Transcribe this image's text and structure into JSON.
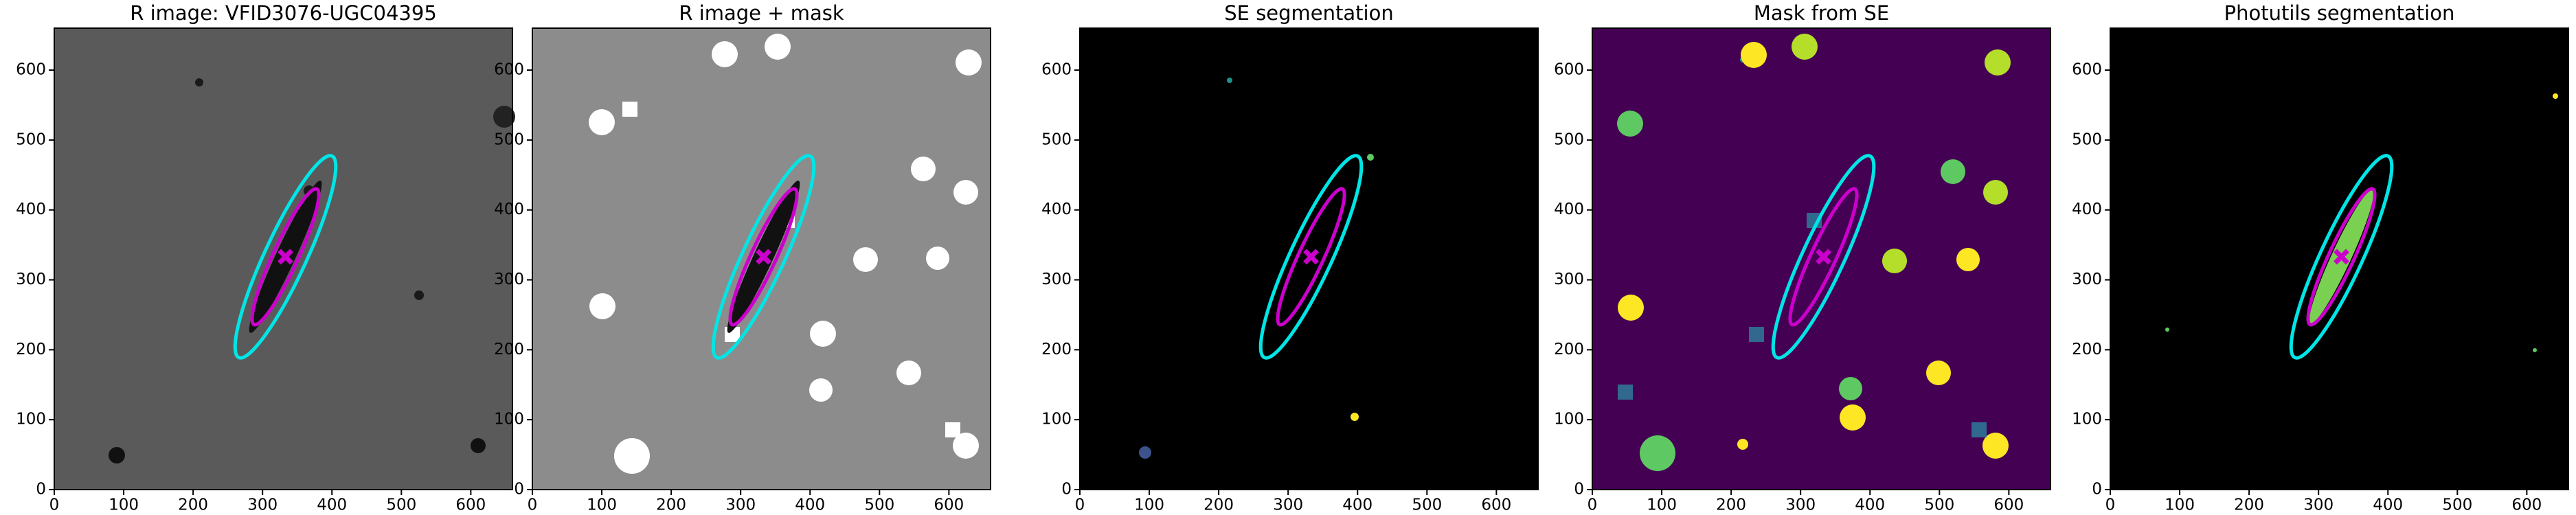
{
  "chart_data": [
    {
      "type": "image",
      "title": "R image: VFID3076-UGC04395",
      "background": "#5a5a5a",
      "xlim": [
        0,
        660
      ],
      "ylim": [
        0,
        660
      ],
      "xticks": [
        0,
        100,
        200,
        300,
        400,
        500,
        600
      ],
      "yticks": [
        0,
        100,
        200,
        300,
        400,
        500,
        600
      ],
      "ellipses": [
        {
          "color": "#111111",
          "filled": true,
          "cx": 333,
          "cy": 333,
          "a": 120,
          "b": 14,
          "angle": 65
        },
        {
          "color": "#00e5e5",
          "filled": false,
          "cx": 333,
          "cy": 333,
          "a": 159,
          "b": 30,
          "angle": 65
        },
        {
          "color": "#cc00cc",
          "filled": false,
          "cx": 333,
          "cy": 333,
          "a": 107,
          "b": 18,
          "angle": 65
        }
      ],
      "marker": {
        "x": 333,
        "y": 333,
        "color": "#cc00cc"
      }
    },
    {
      "type": "image",
      "title": "R image + mask",
      "background": "#8c8c8c",
      "xlim": [
        0,
        660
      ],
      "ylim": [
        0,
        660
      ],
      "xticks": [
        0,
        100,
        200,
        300,
        400,
        500,
        600
      ],
      "yticks": [
        0,
        100,
        200,
        300,
        400,
        500,
        600
      ],
      "ellipses": [
        {
          "color": "#111111",
          "filled": true,
          "cx": 333,
          "cy": 333,
          "a": 120,
          "b": 14,
          "angle": 65
        },
        {
          "color": "#00e5e5",
          "filled": false,
          "cx": 333,
          "cy": 333,
          "a": 159,
          "b": 30,
          "angle": 65
        },
        {
          "color": "#cc00cc",
          "filled": false,
          "cx": 333,
          "cy": 333,
          "a": 107,
          "b": 18,
          "angle": 65
        }
      ],
      "marker": {
        "x": 333,
        "y": 333,
        "color": "#cc00cc"
      }
    },
    {
      "type": "image",
      "title": "SE segmentation",
      "background": "#000000",
      "xlim": [
        0,
        660
      ],
      "ylim": [
        0,
        660
      ],
      "xticks": [
        0,
        100,
        200,
        300,
        400,
        500,
        600
      ],
      "yticks": [
        0,
        100,
        200,
        300,
        400,
        500,
        600
      ],
      "ellipses": [
        {
          "color": "#00e5e5",
          "filled": false,
          "cx": 333,
          "cy": 333,
          "a": 159,
          "b": 30,
          "angle": 65
        },
        {
          "color": "#cc00cc",
          "filled": false,
          "cx": 333,
          "cy": 333,
          "a": 107,
          "b": 18,
          "angle": 65
        }
      ],
      "marker": {
        "x": 333,
        "y": 333,
        "color": "#cc00cc"
      }
    },
    {
      "type": "image",
      "title": "Mask from SE",
      "background": "#440154",
      "xlim": [
        0,
        660
      ],
      "ylim": [
        0,
        660
      ],
      "xticks": [
        0,
        100,
        200,
        300,
        400,
        500,
        600
      ],
      "yticks": [
        0,
        100,
        200,
        300,
        400,
        500,
        600
      ],
      "ellipses": [
        {
          "color": "#00e5e5",
          "filled": false,
          "cx": 333,
          "cy": 333,
          "a": 159,
          "b": 30,
          "angle": 65
        },
        {
          "color": "#cc00cc",
          "filled": false,
          "cx": 333,
          "cy": 333,
          "a": 107,
          "b": 18,
          "angle": 65
        }
      ],
      "marker": {
        "x": 333,
        "y": 333,
        "color": "#cc00cc"
      }
    },
    {
      "type": "image",
      "title": "Photutils segmentation",
      "background": "#000000",
      "xlim": [
        0,
        660
      ],
      "ylim": [
        0,
        660
      ],
      "xticks": [
        0,
        100,
        200,
        300,
        400,
        500,
        600
      ],
      "yticks": [
        0,
        100,
        200,
        300,
        400,
        500,
        600
      ],
      "ellipses": [
        {
          "color": "#7ad151",
          "filled": true,
          "cx": 333,
          "cy": 333,
          "a": 105,
          "b": 14,
          "angle": 65
        },
        {
          "color": "#00e5e5",
          "filled": false,
          "cx": 333,
          "cy": 333,
          "a": 159,
          "b": 30,
          "angle": 65
        },
        {
          "color": "#cc00cc",
          "filled": false,
          "cx": 333,
          "cy": 333,
          "a": 107,
          "b": 18,
          "angle": 65
        }
      ],
      "marker": {
        "x": 333,
        "y": 333,
        "color": "#cc00cc"
      }
    }
  ]
}
